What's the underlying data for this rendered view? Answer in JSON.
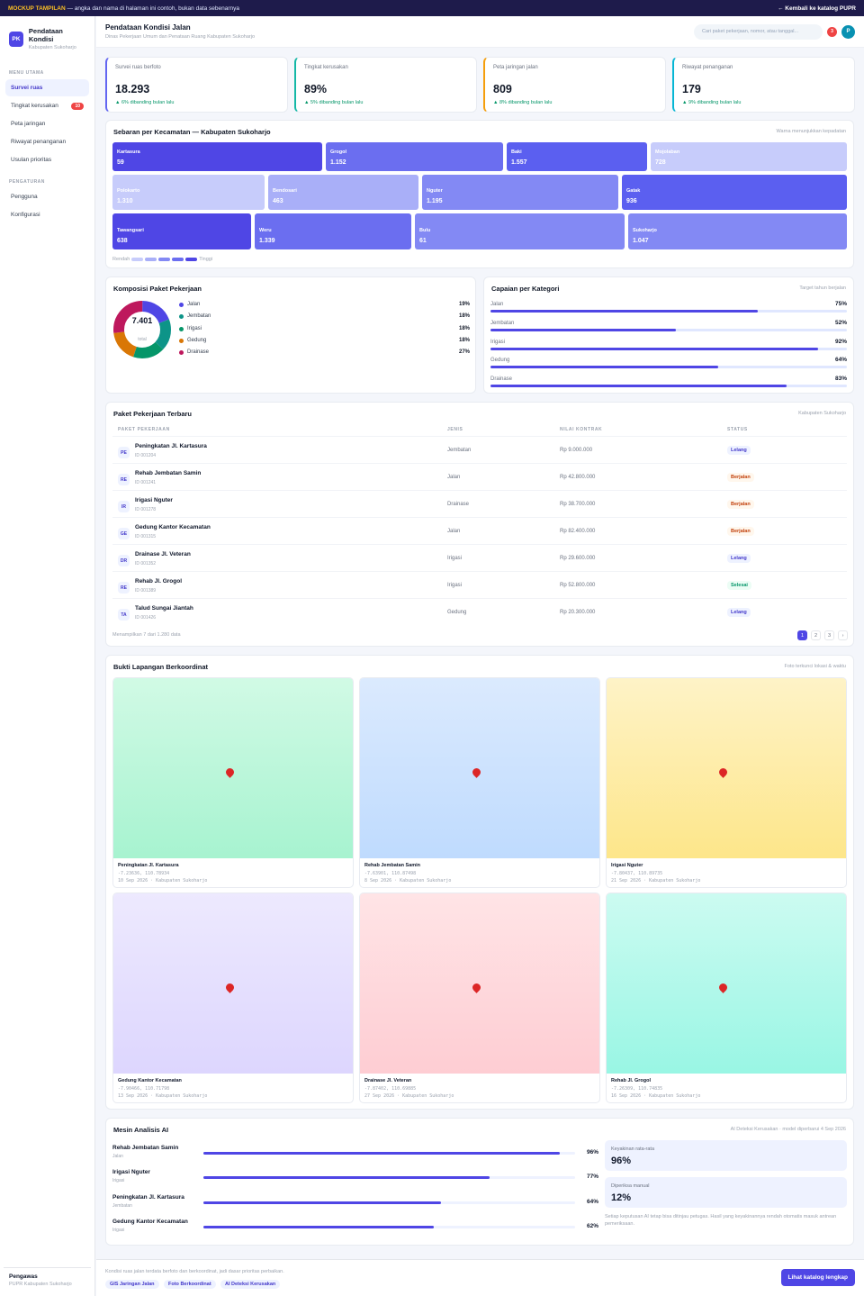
{
  "banner": {
    "tag": "MOCKUP TAMPILAN",
    "text": " — angka dan nama di halaman ini contoh, bukan data sebenarnya",
    "back": "← Kembali ke katalog PUPR"
  },
  "brand": {
    "logo": "PK",
    "title": "Pendataan Kondisi",
    "subtitle": "Kabupaten Sukoharjo"
  },
  "sidebar": {
    "section1": "MENU UTAMA",
    "items": [
      {
        "label": "Survei ruas",
        "active": true
      },
      {
        "label": "Tingkat kerusakan",
        "badge": "10"
      },
      {
        "label": "Peta jaringan"
      },
      {
        "label": "Riwayat penanganan"
      },
      {
        "label": "Usulan prioritas"
      }
    ],
    "section2": "PENGATURAN",
    "items2": [
      {
        "label": "Pengguna"
      },
      {
        "label": "Konfigurasi"
      }
    ],
    "footer_title": "Pengawas",
    "footer_sub": "PUPR Kabupaten Sukoharjo"
  },
  "header": {
    "title": "Pendataan Kondisi Jalan",
    "subtitle": "Dinas Pekerjaan Umum dan Penataan Ruang Kabupaten Sukoharjo",
    "search_placeholder": "Cari paket pekerjaan, nomor, atau tanggal...",
    "notif_count": "3",
    "avatar": "P"
  },
  "kpis": [
    {
      "label": "Survei ruas berfoto",
      "value": "18.293",
      "delta": "▲ 6% dibanding bulan lalu",
      "color": "#6366f1"
    },
    {
      "label": "Tingkat kerusakan",
      "value": "89%",
      "delta": "▲ 5% dibanding bulan lalu",
      "color": "#14b8a6"
    },
    {
      "label": "Peta jaringan jalan",
      "value": "809",
      "delta": "▲ 8% dibanding bulan lalu",
      "color": "#f59e0b"
    },
    {
      "label": "Riwayat penanganan",
      "value": "179",
      "delta": "▲ 9% dibanding bulan lalu",
      "color": "#06b6d4"
    }
  ],
  "treemap": {
    "title": "Sebaran per Kecamatan — Kabupaten Sukoharjo",
    "note": "Warna menunjukkan kepadatan",
    "items": [
      {
        "name": "Kartasura",
        "count": "59",
        "color": "#4f46e5"
      },
      {
        "name": "Grogol",
        "count": "1.152",
        "color": "#6b6ef0"
      },
      {
        "name": "Baki",
        "count": "1.557",
        "color": "#5b5ff0"
      },
      {
        "name": "Mojolaban",
        "count": "728",
        "color": "#c7ccfb"
      },
      {
        "name": "Polokarto",
        "count": "1.310",
        "color": "#c7ccfb"
      },
      {
        "name": "Bendosari",
        "count": "463",
        "color": "#a9aff8"
      },
      {
        "name": "Nguter",
        "count": "1.195",
        "color": "#8389f4"
      },
      {
        "name": "Gatak",
        "count": "936",
        "color": "#5b5ff0"
      },
      {
        "name": "Tawangsari",
        "count": "638",
        "color": "#4f46e5"
      },
      {
        "name": "Weru",
        "count": "1.339",
        "color": "#6b6ef0"
      },
      {
        "name": "Bulu",
        "count": "61",
        "color": "#8389f4"
      },
      {
        "name": "Sukoharjo",
        "count": "1.047",
        "color": "#8389f4"
      }
    ],
    "legend_low": "Rendah",
    "legend_high": "Tinggi"
  },
  "composition": {
    "title": "Komposisi Paket Pekerjaan",
    "total": "7.401",
    "total_label": "total",
    "slices": [
      {
        "label": "Jalan",
        "pct": "19%",
        "value": 19,
        "color": "#4f46e5"
      },
      {
        "label": "Jembatan",
        "pct": "18%",
        "value": 18,
        "color": "#0d9488"
      },
      {
        "label": "Irigasi",
        "pct": "18%",
        "value": 18,
        "color": "#059669"
      },
      {
        "label": "Gedung",
        "pct": "18%",
        "value": 18,
        "color": "#d97706"
      },
      {
        "label": "Drainase",
        "pct": "27%",
        "value": 27,
        "color": "#be185d"
      }
    ]
  },
  "achievement": {
    "title": "Capaian per Kategori",
    "note": "Target tahun berjalan",
    "items": [
      {
        "label": "Jalan",
        "value": 75,
        "pct": "75%"
      },
      {
        "label": "Jembatan",
        "value": 52,
        "pct": "52%"
      },
      {
        "label": "Irigasi",
        "value": 92,
        "pct": "92%"
      },
      {
        "label": "Gedung",
        "value": 64,
        "pct": "64%"
      },
      {
        "label": "Drainase",
        "value": 83,
        "pct": "83%"
      }
    ]
  },
  "table": {
    "title": "Paket Pekerjaan Terbaru",
    "note": "Kabupaten Sukoharjo",
    "headers": [
      "PAKET PEKERJAAN",
      "JENIS",
      "NILAI KONTRAK",
      "STATUS"
    ],
    "rows": [
      {
        "ini": "PE",
        "name": "Peningkatan Jl. Kartasura",
        "id": "ID 001204",
        "jenis": "Jembatan",
        "nilai": "Rp 9.000.000",
        "status": "Lelang",
        "cls": "lelang"
      },
      {
        "ini": "RE",
        "name": "Rehab Jembatan Samin",
        "id": "ID 001241",
        "jenis": "Jalan",
        "nilai": "Rp 42.800.000",
        "status": "Berjalan",
        "cls": "berjalan"
      },
      {
        "ini": "IR",
        "name": "Irigasi Nguter",
        "id": "ID 001278",
        "jenis": "Drainase",
        "nilai": "Rp 38.700.000",
        "status": "Berjalan",
        "cls": "berjalan"
      },
      {
        "ini": "GE",
        "name": "Gedung Kantor Kecamatan",
        "id": "ID 001315",
        "jenis": "Jalan",
        "nilai": "Rp 82.400.000",
        "status": "Berjalan",
        "cls": "berjalan"
      },
      {
        "ini": "DR",
        "name": "Drainase Jl. Veteran",
        "id": "ID 001352",
        "jenis": "Irigasi",
        "nilai": "Rp 29.600.000",
        "status": "Lelang",
        "cls": "lelang"
      },
      {
        "ini": "RE",
        "name": "Rehab Jl. Grogol",
        "id": "ID 001389",
        "jenis": "Irigasi",
        "nilai": "Rp 52.800.000",
        "status": "Selesai",
        "cls": "selesai"
      },
      {
        "ini": "TA",
        "name": "Talud Sungai Jiantah",
        "id": "ID 001426",
        "jenis": "Gedung",
        "nilai": "Rp 20.300.000",
        "status": "Lelang",
        "cls": "lelang"
      }
    ],
    "footer": "Menampilkan 7 dari 1.280 data",
    "pages": [
      "1",
      "2",
      "3",
      "›"
    ]
  },
  "photos": {
    "title": "Bukti Lapangan Berkoordinat",
    "note": "Foto terkunci lokasi & waktu",
    "items": [
      {
        "name": "Peningkatan Jl. Kartasura",
        "coord": "-7.23636, 110.78934",
        "date": "10 Sep 2026 · Kabupaten Sukoharjo",
        "c1": "#d1fae5",
        "c2": "#a7f3d0"
      },
      {
        "name": "Rehab Jembatan Samin",
        "coord": "-7.63901, 110.87498",
        "date": "8 Sep 2026 · Kabupaten Sukoharjo",
        "c1": "#dbeafe",
        "c2": "#bfdbfe"
      },
      {
        "name": "Irigasi Nguter",
        "coord": "-7.80437, 110.89735",
        "date": "21 Sep 2026 · Kabupaten Sukoharjo",
        "c1": "#fef3c7",
        "c2": "#fde68a"
      },
      {
        "name": "Gedung Kantor Kecamatan",
        "coord": "-7.90466, 110.71798",
        "date": "13 Sep 2026 · Kabupaten Sukoharjo",
        "c1": "#ede9fe",
        "c2": "#ddd6fe"
      },
      {
        "name": "Drainase Jl. Veteran",
        "coord": "-7.87402, 110.69885",
        "date": "27 Sep 2026 · Kabupaten Sukoharjo",
        "c1": "#ffe4e6",
        "c2": "#fecdd3"
      },
      {
        "name": "Rehab Jl. Grogol",
        "coord": "-7.26309, 110.74835",
        "date": "16 Sep 2026 · Kabupaten Sukoharjo",
        "c1": "#ccfbf1",
        "c2": "#99f6e4"
      }
    ]
  },
  "ai": {
    "title": "Mesin Analisis AI",
    "note": "AI Deteksi Kerusakan · model diperbarui 4 Sep 2026",
    "items": [
      {
        "name": "Rehab Jembatan Samin",
        "type": "Jalan",
        "value": 96,
        "pct": "96%"
      },
      {
        "name": "Irigasi Nguter",
        "type": "Irigasi",
        "value": 77,
        "pct": "77%"
      },
      {
        "name": "Peningkatan Jl. Kartasura",
        "type": "Jembatan",
        "value": 64,
        "pct": "64%"
      },
      {
        "name": "Gedung Kantor Kecamatan",
        "type": "Irigasi",
        "value": 62,
        "pct": "62%"
      }
    ],
    "stat1_label": "Keyakinan rata-rata",
    "stat1_value": "96%",
    "stat2_label": "Diperiksa manual",
    "stat2_value": "12%",
    "footnote": "Setiap keputusan AI tetap bisa ditinjau petugas. Hasil yang keyakinannya rendah otomatis masuk antrean pemeriksaan."
  },
  "footer": {
    "text": "Kondisi ruas jalan terdata berfoto dan berkoordinat, jadi dasar prioritas perbaikan.",
    "chips": [
      "GIS Jaringan Jalan",
      "Foto Berkoordinat",
      "AI Deteksi Kerusakan"
    ],
    "cta": "Lihat katalog lengkap"
  }
}
